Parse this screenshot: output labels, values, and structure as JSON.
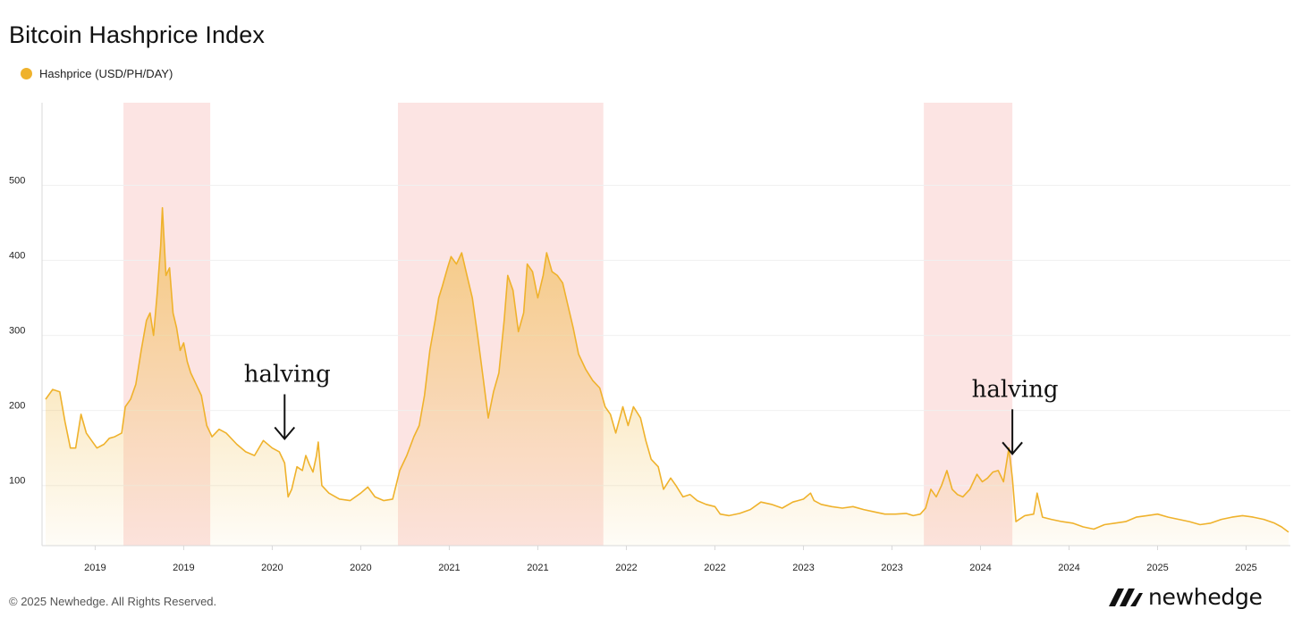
{
  "page": {
    "copyright": "© 2025 Newhedge. All Rights Reserved.",
    "brand": "newhedge"
  },
  "colors": {
    "line": "#efb22c",
    "recession": "#fce4e3",
    "grid": "#f0f0f0",
    "axis": "#d8d8d8"
  },
  "chart_data": {
    "type": "area",
    "title": "Bitcoin Hashprice Index",
    "legend": {
      "position": "top-left",
      "entries": [
        "Hashprice (USD/PH/DAY)"
      ]
    },
    "grid": true,
    "xlim": [
      2018.9,
      2025.95
    ],
    "ylim": [
      20,
      610
    ],
    "yticks": [
      100,
      200,
      300,
      400,
      500
    ],
    "xticks": [
      {
        "x": 2019.2,
        "label": "2019"
      },
      {
        "x": 2019.7,
        "label": "2019"
      },
      {
        "x": 2020.2,
        "label": "2020"
      },
      {
        "x": 2020.7,
        "label": "2020"
      },
      {
        "x": 2021.2,
        "label": "2021"
      },
      {
        "x": 2021.7,
        "label": "2021"
      },
      {
        "x": 2022.2,
        "label": "2022"
      },
      {
        "x": 2022.7,
        "label": "2022"
      },
      {
        "x": 2023.2,
        "label": "2023"
      },
      {
        "x": 2023.7,
        "label": "2023"
      },
      {
        "x": 2024.2,
        "label": "2024"
      },
      {
        "x": 2024.7,
        "label": "2024"
      },
      {
        "x": 2025.2,
        "label": "2025"
      },
      {
        "x": 2025.7,
        "label": "2025"
      }
    ],
    "shaded_regions": [
      {
        "x0": 2019.36,
        "x1": 2019.85
      },
      {
        "x0": 2020.91,
        "x1": 2022.07
      },
      {
        "x0": 2023.88,
        "x1": 2024.38
      }
    ],
    "annotations": [
      {
        "text": "halving",
        "x": 2020.27,
        "arrow_y": 155
      },
      {
        "text": "halving",
        "x": 2024.38,
        "arrow_y": 135
      }
    ],
    "series": [
      {
        "name": "Hashprice (USD/PH/DAY)",
        "points": [
          [
            2018.92,
            215
          ],
          [
            2018.96,
            228
          ],
          [
            2019.0,
            225
          ],
          [
            2019.03,
            185
          ],
          [
            2019.06,
            150
          ],
          [
            2019.09,
            150
          ],
          [
            2019.12,
            195
          ],
          [
            2019.15,
            170
          ],
          [
            2019.18,
            160
          ],
          [
            2019.21,
            150
          ],
          [
            2019.25,
            155
          ],
          [
            2019.28,
            163
          ],
          [
            2019.31,
            165
          ],
          [
            2019.35,
            170
          ],
          [
            2019.37,
            205
          ],
          [
            2019.4,
            215
          ],
          [
            2019.43,
            235
          ],
          [
            2019.46,
            280
          ],
          [
            2019.49,
            320
          ],
          [
            2019.51,
            330
          ],
          [
            2019.53,
            300
          ],
          [
            2019.55,
            355
          ],
          [
            2019.57,
            420
          ],
          [
            2019.58,
            470
          ],
          [
            2019.6,
            380
          ],
          [
            2019.62,
            390
          ],
          [
            2019.64,
            330
          ],
          [
            2019.66,
            310
          ],
          [
            2019.68,
            280
          ],
          [
            2019.7,
            290
          ],
          [
            2019.72,
            265
          ],
          [
            2019.74,
            250
          ],
          [
            2019.77,
            235
          ],
          [
            2019.8,
            220
          ],
          [
            2019.83,
            180
          ],
          [
            2019.86,
            165
          ],
          [
            2019.9,
            175
          ],
          [
            2019.94,
            170
          ],
          [
            2020.0,
            155
          ],
          [
            2020.05,
            145
          ],
          [
            2020.1,
            140
          ],
          [
            2020.15,
            160
          ],
          [
            2020.2,
            150
          ],
          [
            2020.24,
            145
          ],
          [
            2020.27,
            130
          ],
          [
            2020.29,
            85
          ],
          [
            2020.31,
            95
          ],
          [
            2020.34,
            125
          ],
          [
            2020.37,
            120
          ],
          [
            2020.39,
            140
          ],
          [
            2020.41,
            128
          ],
          [
            2020.43,
            118
          ],
          [
            2020.45,
            140
          ],
          [
            2020.46,
            158
          ],
          [
            2020.48,
            100
          ],
          [
            2020.52,
            90
          ],
          [
            2020.58,
            82
          ],
          [
            2020.64,
            80
          ],
          [
            2020.7,
            90
          ],
          [
            2020.74,
            98
          ],
          [
            2020.78,
            85
          ],
          [
            2020.83,
            80
          ],
          [
            2020.88,
            82
          ],
          [
            2020.92,
            120
          ],
          [
            2020.96,
            140
          ],
          [
            2021.0,
            165
          ],
          [
            2021.03,
            180
          ],
          [
            2021.06,
            220
          ],
          [
            2021.09,
            280
          ],
          [
            2021.12,
            320
          ],
          [
            2021.14,
            350
          ],
          [
            2021.16,
            365
          ],
          [
            2021.19,
            390
          ],
          [
            2021.21,
            405
          ],
          [
            2021.24,
            395
          ],
          [
            2021.27,
            410
          ],
          [
            2021.3,
            380
          ],
          [
            2021.33,
            350
          ],
          [
            2021.36,
            300
          ],
          [
            2021.39,
            245
          ],
          [
            2021.42,
            190
          ],
          [
            2021.45,
            225
          ],
          [
            2021.48,
            250
          ],
          [
            2021.51,
            320
          ],
          [
            2021.53,
            380
          ],
          [
            2021.56,
            360
          ],
          [
            2021.59,
            305
          ],
          [
            2021.62,
            330
          ],
          [
            2021.64,
            395
          ],
          [
            2021.67,
            385
          ],
          [
            2021.7,
            350
          ],
          [
            2021.73,
            380
          ],
          [
            2021.75,
            410
          ],
          [
            2021.78,
            385
          ],
          [
            2021.81,
            380
          ],
          [
            2021.84,
            370
          ],
          [
            2021.87,
            340
          ],
          [
            2021.9,
            310
          ],
          [
            2021.93,
            275
          ],
          [
            2021.97,
            255
          ],
          [
            2022.01,
            240
          ],
          [
            2022.05,
            230
          ],
          [
            2022.08,
            205
          ],
          [
            2022.11,
            195
          ],
          [
            2022.14,
            170
          ],
          [
            2022.18,
            205
          ],
          [
            2022.21,
            180
          ],
          [
            2022.24,
            205
          ],
          [
            2022.28,
            190
          ],
          [
            2022.31,
            160
          ],
          [
            2022.34,
            135
          ],
          [
            2022.38,
            125
          ],
          [
            2022.41,
            95
          ],
          [
            2022.45,
            110
          ],
          [
            2022.48,
            100
          ],
          [
            2022.52,
            85
          ],
          [
            2022.56,
            88
          ],
          [
            2022.6,
            80
          ],
          [
            2022.65,
            75
          ],
          [
            2022.7,
            72
          ],
          [
            2022.73,
            62
          ],
          [
            2022.78,
            60
          ],
          [
            2022.84,
            63
          ],
          [
            2022.9,
            68
          ],
          [
            2022.96,
            78
          ],
          [
            2023.02,
            75
          ],
          [
            2023.08,
            70
          ],
          [
            2023.14,
            78
          ],
          [
            2023.2,
            82
          ],
          [
            2023.24,
            90
          ],
          [
            2023.26,
            80
          ],
          [
            2023.3,
            75
          ],
          [
            2023.36,
            72
          ],
          [
            2023.42,
            70
          ],
          [
            2023.48,
            72
          ],
          [
            2023.54,
            68
          ],
          [
            2023.6,
            65
          ],
          [
            2023.66,
            62
          ],
          [
            2023.72,
            62
          ],
          [
            2023.78,
            63
          ],
          [
            2023.82,
            60
          ],
          [
            2023.86,
            62
          ],
          [
            2023.89,
            70
          ],
          [
            2023.92,
            95
          ],
          [
            2023.95,
            85
          ],
          [
            2023.98,
            100
          ],
          [
            2024.01,
            120
          ],
          [
            2024.04,
            95
          ],
          [
            2024.07,
            88
          ],
          [
            2024.1,
            85
          ],
          [
            2024.14,
            95
          ],
          [
            2024.18,
            115
          ],
          [
            2024.21,
            105
          ],
          [
            2024.24,
            110
          ],
          [
            2024.27,
            118
          ],
          [
            2024.3,
            120
          ],
          [
            2024.33,
            105
          ],
          [
            2024.36,
            150
          ],
          [
            2024.38,
            110
          ],
          [
            2024.4,
            52
          ],
          [
            2024.45,
            60
          ],
          [
            2024.5,
            62
          ],
          [
            2024.52,
            90
          ],
          [
            2024.55,
            58
          ],
          [
            2024.6,
            55
          ],
          [
            2024.66,
            52
          ],
          [
            2024.72,
            50
          ],
          [
            2024.78,
            45
          ],
          [
            2024.84,
            42
          ],
          [
            2024.9,
            48
          ],
          [
            2024.96,
            50
          ],
          [
            2025.02,
            52
          ],
          [
            2025.08,
            58
          ],
          [
            2025.14,
            60
          ],
          [
            2025.2,
            62
          ],
          [
            2025.26,
            58
          ],
          [
            2025.32,
            55
          ],
          [
            2025.38,
            52
          ],
          [
            2025.44,
            48
          ],
          [
            2025.5,
            50
          ],
          [
            2025.56,
            55
          ],
          [
            2025.62,
            58
          ],
          [
            2025.68,
            60
          ],
          [
            2025.74,
            58
          ],
          [
            2025.8,
            55
          ],
          [
            2025.86,
            50
          ],
          [
            2025.9,
            45
          ],
          [
            2025.94,
            38
          ]
        ]
      }
    ]
  }
}
